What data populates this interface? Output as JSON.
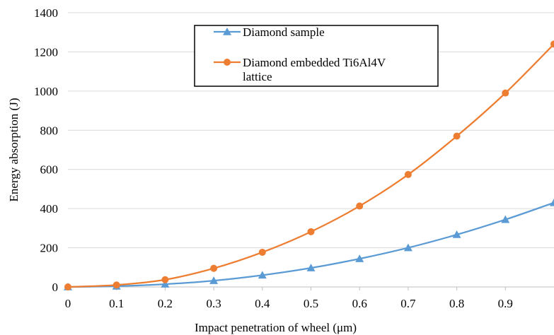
{
  "chart_data": {
    "type": "line",
    "title": "",
    "xlabel": "Impact penetration of wheel (μm)",
    "ylabel": "Energy absorption (J)",
    "xlim": [
      0,
      1.0
    ],
    "ylim": [
      0,
      1400
    ],
    "x_ticks": [
      "0",
      "0.1",
      "0.2",
      "0.3",
      "0.4",
      "0.5",
      "0.6",
      "0.7",
      "0.8",
      "0.9"
    ],
    "y_ticks": [
      "0",
      "200",
      "400",
      "600",
      "800",
      "1000",
      "1200",
      "1400"
    ],
    "x": [
      0,
      0.1,
      0.2,
      0.3,
      0.4,
      0.5,
      0.6,
      0.7,
      0.8,
      0.9,
      1.0
    ],
    "grid": "horizontal",
    "legend_position": "top-center",
    "series": [
      {
        "name": "Diamond sample",
        "marker": "triangle",
        "color": "#5B9BD5",
        "values": [
          0,
          4,
          14,
          32,
          60,
          97,
          144,
          200,
          267,
          344,
          430
        ]
      },
      {
        "name": "Diamond embedded Ti6Al4V lattice",
        "name_lines": [
          "Diamond embedded Ti6Al4V",
          "lattice"
        ],
        "marker": "circle",
        "color": "#ED7D31",
        "values": [
          0,
          10,
          37,
          95,
          177,
          282,
          413,
          574,
          770,
          990,
          1240
        ]
      }
    ]
  }
}
